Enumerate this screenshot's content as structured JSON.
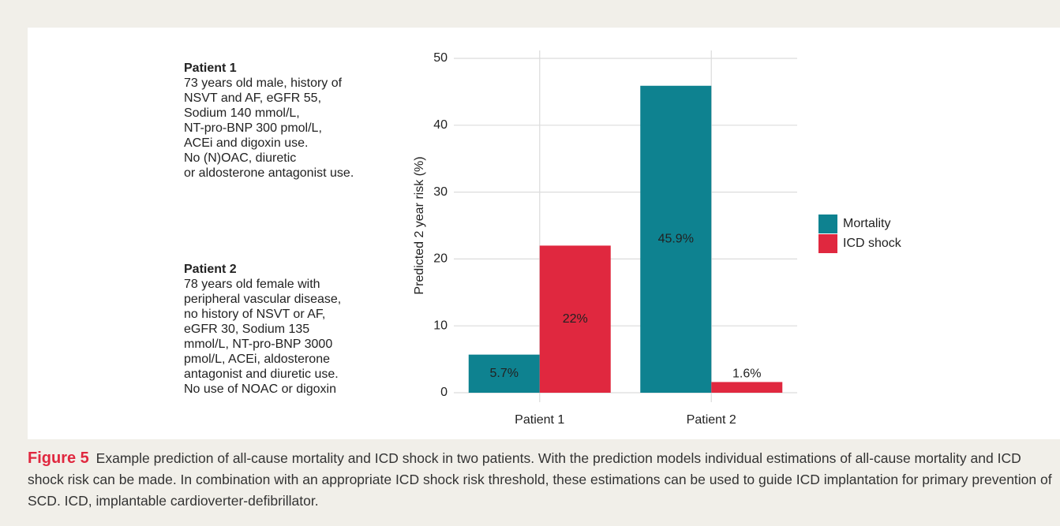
{
  "chart_data": {
    "type": "bar",
    "categories": [
      "Patient 1",
      "Patient 2"
    ],
    "series": [
      {
        "name": "Mortality",
        "color": "#0e8290",
        "values": [
          5.7,
          45.9
        ],
        "value_labels": [
          "5.7%",
          "45.9%"
        ]
      },
      {
        "name": "ICD shock",
        "color": "#e0283f",
        "values": [
          22,
          1.6
        ],
        "value_labels": [
          "22%",
          "1.6%"
        ]
      }
    ],
    "y_label": "Predicted 2 year risk (%)",
    "ylim": [
      0,
      50
    ],
    "yticks": [
      0,
      10,
      20,
      30,
      40,
      50
    ],
    "grid": true
  },
  "patients": [
    {
      "title": "Patient 1",
      "lines": [
        "73 years old male, history of",
        "NSVT and AF, eGFR 55,",
        "Sodium 140 mmol/L,",
        "NT-pro-BNP 300 pmol/L,",
        "ACEi and digoxin use.",
        "No (N)OAC, diuretic",
        "or aldosterone antagonist use."
      ]
    },
    {
      "title": "Patient 2",
      "lines": [
        "78 years old female with",
        "peripheral vascular disease,",
        "no history of NSVT or AF,",
        "eGFR 30, Sodium 135",
        "mmol/L, NT-pro-BNP 3000",
        "pmol/L, ACEi, aldosterone",
        "antagonist and diuretic use.",
        "No use of NOAC or digoxin"
      ]
    }
  ],
  "caption": {
    "label": "Figure 5",
    "text": "Example prediction of all-cause mortality and ICD shock in two patients. With the prediction models individual estimations of all-cause mortality and ICD shock risk can be made. In combination with an appropriate ICD shock risk threshold, these estimations can be used to guide ICD implantation for primary prevention of SCD. ICD, implantable cardioverter-defibrillator."
  }
}
